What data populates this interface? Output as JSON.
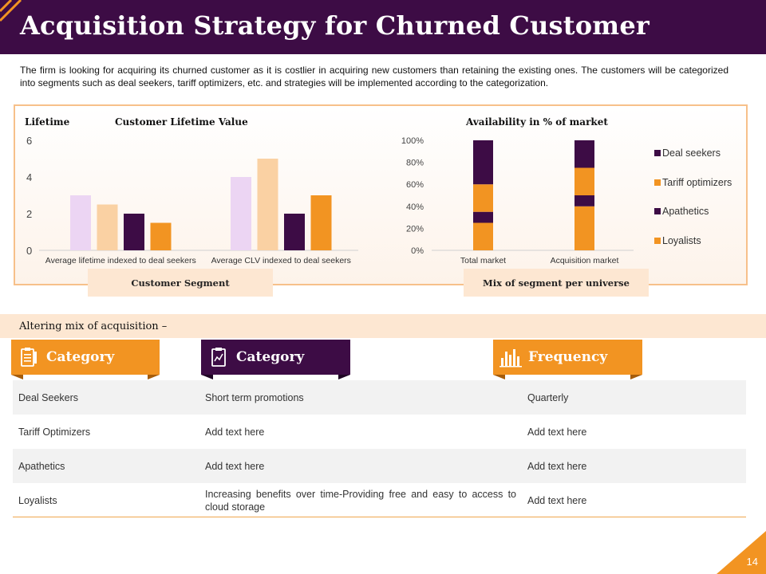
{
  "slide": {
    "title": "Acquisition Strategy for Churned Customer",
    "intro": "The firm is looking for acquiring its churned customer as it is costlier in acquiring new customers than retaining the existing ones. The customers will be categorized into segments such as deal seekers, tariff optimizers, etc. and strategies will be implemented according to the categorization.",
    "page_number": "14"
  },
  "chart_data": [
    {
      "type": "bar",
      "title": "Customer Lifetime Value",
      "ylabel": "Lifetime",
      "xlabel": "Customer Segment",
      "categories": [
        "Average lifetime indexed to deal seekers",
        "Average CLV indexed to deal seekers"
      ],
      "series": [
        {
          "values": [
            3,
            4
          ],
          "color": "#ecd5f3"
        },
        {
          "values": [
            2.5,
            5
          ],
          "color": "#fad1a3"
        },
        {
          "values": [
            2,
            2
          ],
          "color": "#3d0c45"
        },
        {
          "values": [
            1.5,
            3
          ],
          "color": "#f29422"
        }
      ],
      "ylim": [
        0,
        6
      ],
      "yticks": [
        "0",
        "2",
        "4",
        "6"
      ],
      "grid": false
    },
    {
      "type": "bar",
      "stacked": true,
      "title": "Availability in % of market",
      "xlabel": "Mix of segment per universe",
      "categories": [
        "Total market",
        "Acquisition market"
      ],
      "series": [
        {
          "name": "Loyalists",
          "values": [
            25,
            40
          ],
          "color": "#f29422"
        },
        {
          "name": "Apathetics",
          "values": [
            10,
            10
          ],
          "color": "#3d0c45"
        },
        {
          "name": "Tariff optimizers",
          "values": [
            25,
            25
          ],
          "color": "#f29422"
        },
        {
          "name": "Deal seekers",
          "values": [
            40,
            25
          ],
          "color": "#3d0c45"
        }
      ],
      "legend_order": [
        "Deal seekers",
        "Tariff optimizers",
        "Apathetics",
        "Loyalists"
      ],
      "ylim": [
        0,
        100
      ],
      "yticks": [
        "0%",
        "20%",
        "40%",
        "60%",
        "80%",
        "100%"
      ],
      "legend": "right",
      "grid": false
    }
  ],
  "acquisition": {
    "heading": "Altering mix of acquisition –",
    "headers": [
      {
        "label": "Category",
        "icon": "clipboard-checklist-icon",
        "color": "#f29422"
      },
      {
        "label": "Category",
        "icon": "clipboard-chart-icon",
        "color": "#3d0c45"
      },
      {
        "label": "Frequency",
        "icon": "bar-chart-icon",
        "color": "#f29422"
      }
    ],
    "rows": [
      [
        "Deal Seekers",
        "Short term promotions",
        "Quarterly"
      ],
      [
        "Tariff Optimizers",
        "Add text here",
        "Add text here"
      ],
      [
        "Apathetics",
        "Add text here",
        "Add text here"
      ],
      [
        "Loyalists",
        "Increasing benefits over time-Providing free and easy to access to cloud storage",
        "Add text here"
      ]
    ],
    "row_fill": [
      "#f2f2f2",
      "#ffffff",
      "#f2f2f2",
      "#ffffff"
    ]
  }
}
